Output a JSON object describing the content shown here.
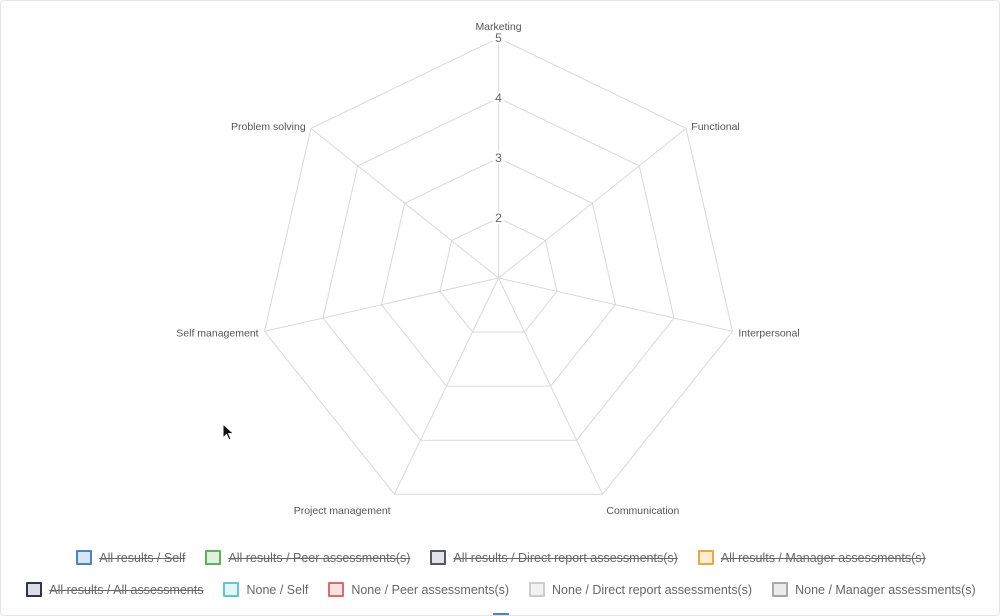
{
  "chart_data": {
    "type": "radar",
    "axes": [
      "Marketing",
      "Functional",
      "Interpersonal",
      "Communication",
      "Project management",
      "Self management",
      "Problem solving"
    ],
    "r_range": [
      1,
      5
    ],
    "ticks": [
      "2",
      "3",
      "4",
      "5"
    ],
    "grid": true,
    "legend": "bottom",
    "series": [
      {
        "name": "All results / Self",
        "hidden": true,
        "color": "#4a84c4",
        "fill": "#d6e6f6"
      },
      {
        "name": "All results / Peer assessments(s)",
        "hidden": true,
        "color": "#5cb25c",
        "fill": "#dff0df"
      },
      {
        "name": "All results / Direct report assessments(s)",
        "hidden": true,
        "color": "#555566",
        "fill": "#e2e2ea"
      },
      {
        "name": "All results / Manager assessments(s)",
        "hidden": true,
        "color": "#e9a93a",
        "fill": "#fbecd2"
      },
      {
        "name": "All results / All assessments",
        "hidden": true,
        "color": "#2e3350",
        "fill": "#dcdde6"
      },
      {
        "name": "None / Self",
        "hidden": false,
        "color": "#5fc6d4",
        "fill": "#e3f6f8"
      },
      {
        "name": "None / Peer assessments(s)",
        "hidden": false,
        "color": "#dc6a6a",
        "fill": "#f9e2e2"
      },
      {
        "name": "None / Direct report assessments(s)",
        "hidden": false,
        "color": "#cccccc",
        "fill": "#f2f2f2"
      },
      {
        "name": "None / Manager assessments(s)",
        "hidden": false,
        "color": "#a9a9a9",
        "fill": "#ececec"
      },
      {
        "name": "",
        "hidden": false,
        "color": "#4a84c4",
        "fill": "#d6e6f6"
      }
    ]
  }
}
